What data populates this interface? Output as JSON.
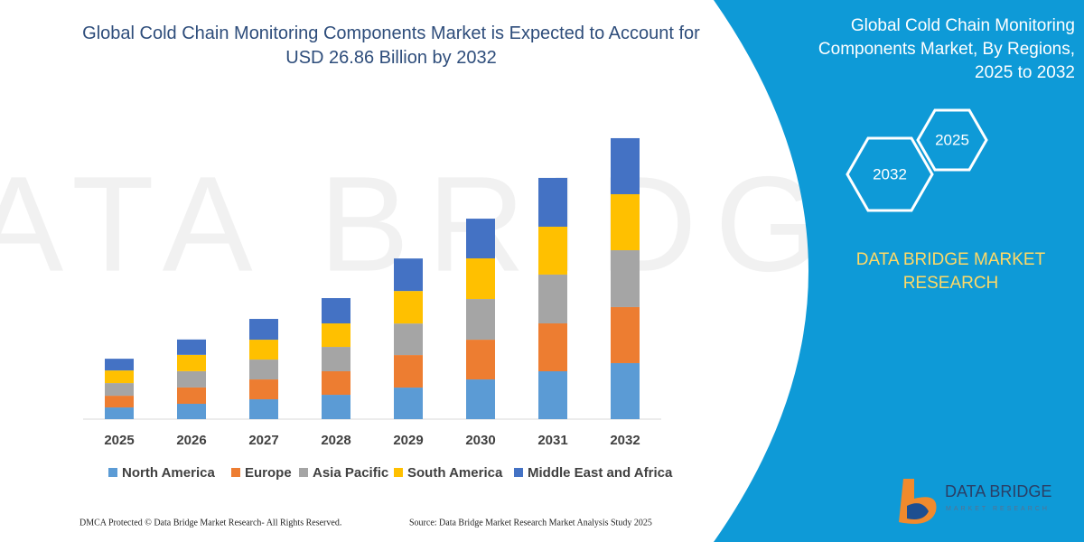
{
  "chart_data": {
    "type": "bar",
    "stacked": true,
    "title": "Global Cold Chain Monitoring Components Market is Expected to Account for USD 26.86 Billion by 2032",
    "categories": [
      "2025",
      "2026",
      "2027",
      "2028",
      "2029",
      "2030",
      "2031",
      "2032"
    ],
    "series": [
      {
        "name": "North America",
        "color": "#5b9bd5",
        "values": [
          1.12,
          1.47,
          1.9,
          2.33,
          3.02,
          3.8,
          4.58,
          5.36
        ]
      },
      {
        "name": "Europe",
        "color": "#ed7d31",
        "values": [
          1.12,
          1.56,
          1.9,
          2.25,
          3.11,
          3.8,
          4.58,
          5.36
        ]
      },
      {
        "name": "Asia Pacific",
        "color": "#a5a5a5",
        "values": [
          1.21,
          1.56,
          1.9,
          2.33,
          3.02,
          3.89,
          4.67,
          5.44
        ]
      },
      {
        "name": "South America",
        "color": "#ffc000",
        "values": [
          1.21,
          1.56,
          1.9,
          2.25,
          3.11,
          3.89,
          4.58,
          5.36
        ]
      },
      {
        "name": "Middle East and Africa",
        "color": "#4472c4",
        "values": [
          1.12,
          1.47,
          1.99,
          2.42,
          3.11,
          3.8,
          4.67,
          5.36
        ]
      }
    ],
    "ylim": [
      0,
      28
    ]
  },
  "panel": {
    "title": "Global Cold Chain Monitoring Components Market, By Regions, 2025 to 2032",
    "hexagons": [
      "2025",
      "2032"
    ],
    "brand": "DATA BRIDGE MARKET RESEARCH"
  },
  "logo": {
    "name": "DATA BRIDGE",
    "tagline": "MARKET RESEARCH"
  },
  "footer": {
    "dmca": "DMCA Protected © Data Bridge Market Research-  All Rights Reserved.",
    "source": "Source: Data Bridge Market Research  Market Analysis Study 2025"
  }
}
